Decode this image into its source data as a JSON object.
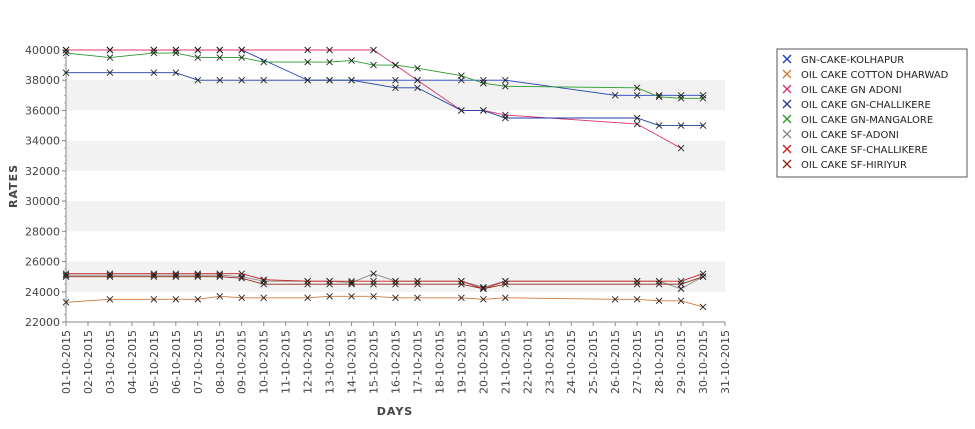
{
  "chart_data": {
    "type": "line",
    "xlabel": "DAYS",
    "ylabel": "RATES",
    "ylim": [
      22000,
      40000
    ],
    "yticks": [
      22000,
      24000,
      26000,
      28000,
      30000,
      32000,
      34000,
      36000,
      38000,
      40000
    ],
    "grid": "alternating horizontal bands",
    "legend_position": "right",
    "x_ticks": [
      "01-10-2015",
      "02-10-2015",
      "03-10-2015",
      "04-10-2015",
      "05-10-2015",
      "06-10-2015",
      "07-10-2015",
      "08-10-2015",
      "09-10-2015",
      "10-10-2015",
      "11-10-2015",
      "12-10-2015",
      "13-10-2015",
      "14-10-2015",
      "15-10-2015",
      "16-10-2015",
      "17-10-2015",
      "18-10-2015",
      "19-10-2015",
      "20-10-2015",
      "21-10-2015",
      "22-10-2015",
      "23-10-2015",
      "24-10-2015",
      "25-10-2015",
      "26-10-2015",
      "27-10-2015",
      "28-10-2015",
      "29-10-2015",
      "30-10-2015",
      "31-10-2015"
    ],
    "series": [
      {
        "name": "GN-CAKE-KOLHAPUR",
        "color": "#1f3fbf",
        "points": [
          [
            "01-10-2015",
            40000
          ],
          [
            "03-10-2015",
            40000
          ],
          [
            "05-10-2015",
            40000
          ],
          [
            "06-10-2015",
            40000
          ],
          [
            "07-10-2015",
            40000
          ],
          [
            "08-10-2015",
            40000
          ],
          [
            "09-10-2015",
            40000
          ],
          [
            "12-10-2015",
            38000
          ],
          [
            "13-10-2015",
            38000
          ],
          [
            "14-10-2015",
            38000
          ],
          [
            "16-10-2015",
            38000
          ],
          [
            "17-10-2015",
            38000
          ],
          [
            "19-10-2015",
            38000
          ],
          [
            "20-10-2015",
            38000
          ],
          [
            "21-10-2015",
            38000
          ],
          [
            "26-10-2015",
            37000
          ],
          [
            "27-10-2015",
            37000
          ],
          [
            "28-10-2015",
            37000
          ],
          [
            "29-10-2015",
            37000
          ],
          [
            "30-10-2015",
            37000
          ]
        ]
      },
      {
        "name": "OIL CAKE COTTON DHARWAD",
        "color": "#d07a3a",
        "points": [
          [
            "01-10-2015",
            23300
          ],
          [
            "03-10-2015",
            23500
          ],
          [
            "05-10-2015",
            23500
          ],
          [
            "06-10-2015",
            23500
          ],
          [
            "07-10-2015",
            23500
          ],
          [
            "08-10-2015",
            23700
          ],
          [
            "09-10-2015",
            23600
          ],
          [
            "10-10-2015",
            23600
          ],
          [
            "12-10-2015",
            23600
          ],
          [
            "13-10-2015",
            23700
          ],
          [
            "14-10-2015",
            23700
          ],
          [
            "15-10-2015",
            23700
          ],
          [
            "16-10-2015",
            23600
          ],
          [
            "17-10-2015",
            23600
          ],
          [
            "19-10-2015",
            23600
          ],
          [
            "20-10-2015",
            23500
          ],
          [
            "21-10-2015",
            23600
          ],
          [
            "26-10-2015",
            23500
          ],
          [
            "27-10-2015",
            23500
          ],
          [
            "28-10-2015",
            23400
          ],
          [
            "29-10-2015",
            23400
          ],
          [
            "30-10-2015",
            23000
          ]
        ]
      },
      {
        "name": "OIL CAKE GN ADONI",
        "color": "#e0306a",
        "points": [
          [
            "01-10-2015",
            40000
          ],
          [
            "03-10-2015",
            40000
          ],
          [
            "05-10-2015",
            40000
          ],
          [
            "06-10-2015",
            40000
          ],
          [
            "07-10-2015",
            40000
          ],
          [
            "08-10-2015",
            40000
          ],
          [
            "09-10-2015",
            40000
          ],
          [
            "12-10-2015",
            40000
          ],
          [
            "13-10-2015",
            40000
          ],
          [
            "15-10-2015",
            40000
          ],
          [
            "16-10-2015",
            39000
          ],
          [
            "17-10-2015",
            38000
          ],
          [
            "19-10-2015",
            36000
          ],
          [
            "20-10-2015",
            36000
          ],
          [
            "21-10-2015",
            35700
          ],
          [
            "27-10-2015",
            35100
          ],
          [
            "29-10-2015",
            33500
          ]
        ]
      },
      {
        "name": "OIL CAKE GN-CHALLIKERE",
        "color": "#1c3f9f",
        "points": [
          [
            "01-10-2015",
            38500
          ],
          [
            "03-10-2015",
            38500
          ],
          [
            "05-10-2015",
            38500
          ],
          [
            "06-10-2015",
            38500
          ],
          [
            "07-10-2015",
            38000
          ],
          [
            "08-10-2015",
            38000
          ],
          [
            "09-10-2015",
            38000
          ],
          [
            "10-10-2015",
            38000
          ],
          [
            "12-10-2015",
            38000
          ],
          [
            "13-10-2015",
            38000
          ],
          [
            "14-10-2015",
            38000
          ],
          [
            "16-10-2015",
            37500
          ],
          [
            "17-10-2015",
            37500
          ],
          [
            "19-10-2015",
            36000
          ],
          [
            "20-10-2015",
            36000
          ],
          [
            "21-10-2015",
            35500
          ],
          [
            "27-10-2015",
            35500
          ],
          [
            "28-10-2015",
            35000
          ],
          [
            "29-10-2015",
            35000
          ],
          [
            "30-10-2015",
            35000
          ]
        ]
      },
      {
        "name": "OIL CAKE GN-MANGALORE",
        "color": "#2a9a2a",
        "points": [
          [
            "01-10-2015",
            39800
          ],
          [
            "03-10-2015",
            39500
          ],
          [
            "05-10-2015",
            39800
          ],
          [
            "06-10-2015",
            39800
          ],
          [
            "07-10-2015",
            39500
          ],
          [
            "08-10-2015",
            39500
          ],
          [
            "09-10-2015",
            39500
          ],
          [
            "10-10-2015",
            39200
          ],
          [
            "12-10-2015",
            39200
          ],
          [
            "13-10-2015",
            39200
          ],
          [
            "14-10-2015",
            39300
          ],
          [
            "15-10-2015",
            39000
          ],
          [
            "16-10-2015",
            39000
          ],
          [
            "17-10-2015",
            38800
          ],
          [
            "19-10-2015",
            38300
          ],
          [
            "20-10-2015",
            37800
          ],
          [
            "21-10-2015",
            37600
          ],
          [
            "27-10-2015",
            37500
          ],
          [
            "28-10-2015",
            36900
          ],
          [
            "29-10-2015",
            36800
          ],
          [
            "30-10-2015",
            36800
          ]
        ]
      },
      {
        "name": "OIL CAKE SF-ADONI",
        "color": "#888888",
        "points": [
          [
            "01-10-2015",
            25100
          ],
          [
            "03-10-2015",
            25100
          ],
          [
            "05-10-2015",
            25100
          ],
          [
            "06-10-2015",
            25100
          ],
          [
            "07-10-2015",
            25100
          ],
          [
            "08-10-2015",
            25100
          ],
          [
            "09-10-2015",
            25000
          ],
          [
            "10-10-2015",
            24700
          ],
          [
            "12-10-2015",
            24700
          ],
          [
            "13-10-2015",
            24700
          ],
          [
            "14-10-2015",
            24600
          ],
          [
            "15-10-2015",
            25200
          ],
          [
            "16-10-2015",
            24700
          ],
          [
            "17-10-2015",
            24700
          ],
          [
            "19-10-2015",
            24700
          ],
          [
            "20-10-2015",
            24300
          ],
          [
            "21-10-2015",
            24700
          ],
          [
            "27-10-2015",
            24700
          ],
          [
            "28-10-2015",
            24700
          ],
          [
            "29-10-2015",
            24200
          ],
          [
            "30-10-2015",
            25000
          ]
        ]
      },
      {
        "name": "OIL CAKE SF-CHALLIKERE",
        "color": "#c81e1e",
        "points": [
          [
            "01-10-2015",
            25200
          ],
          [
            "03-10-2015",
            25200
          ],
          [
            "05-10-2015",
            25200
          ],
          [
            "06-10-2015",
            25200
          ],
          [
            "07-10-2015",
            25200
          ],
          [
            "08-10-2015",
            25200
          ],
          [
            "09-10-2015",
            25200
          ],
          [
            "10-10-2015",
            24800
          ],
          [
            "12-10-2015",
            24700
          ],
          [
            "13-10-2015",
            24700
          ],
          [
            "14-10-2015",
            24700
          ],
          [
            "15-10-2015",
            24700
          ],
          [
            "16-10-2015",
            24700
          ],
          [
            "17-10-2015",
            24700
          ],
          [
            "19-10-2015",
            24700
          ],
          [
            "20-10-2015",
            24200
          ],
          [
            "21-10-2015",
            24700
          ],
          [
            "27-10-2015",
            24700
          ],
          [
            "28-10-2015",
            24700
          ],
          [
            "29-10-2015",
            24700
          ],
          [
            "30-10-2015",
            25200
          ]
        ]
      },
      {
        "name": "OIL CAKE SF-HIRIYUR",
        "color": "#8a2a1a",
        "points": [
          [
            "01-10-2015",
            25000
          ],
          [
            "03-10-2015",
            25000
          ],
          [
            "05-10-2015",
            25000
          ],
          [
            "06-10-2015",
            25000
          ],
          [
            "07-10-2015",
            25000
          ],
          [
            "08-10-2015",
            25000
          ],
          [
            "09-10-2015",
            24900
          ],
          [
            "10-10-2015",
            24500
          ],
          [
            "12-10-2015",
            24500
          ],
          [
            "13-10-2015",
            24500
          ],
          [
            "14-10-2015",
            24500
          ],
          [
            "15-10-2015",
            24500
          ],
          [
            "16-10-2015",
            24500
          ],
          [
            "17-10-2015",
            24500
          ],
          [
            "19-10-2015",
            24500
          ],
          [
            "20-10-2015",
            24200
          ],
          [
            "21-10-2015",
            24500
          ],
          [
            "27-10-2015",
            24500
          ],
          [
            "28-10-2015",
            24500
          ],
          [
            "29-10-2015",
            24500
          ],
          [
            "30-10-2015",
            25000
          ]
        ]
      }
    ]
  }
}
